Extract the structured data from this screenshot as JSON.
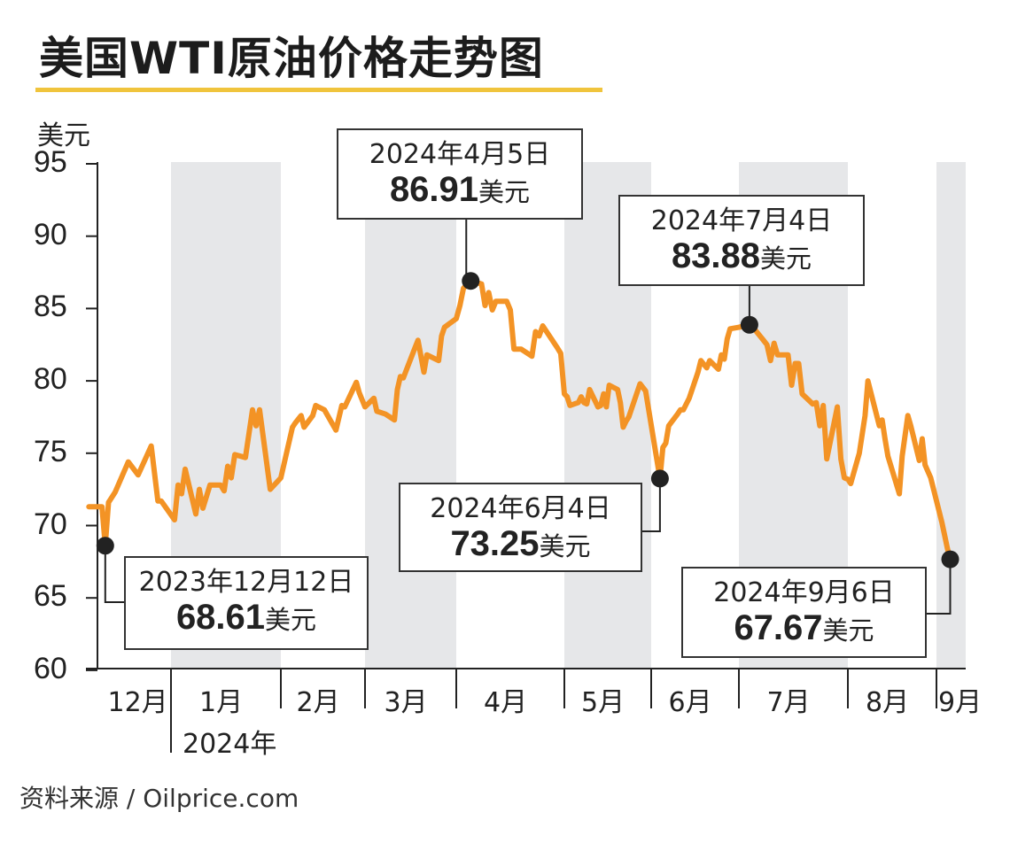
{
  "chart_data": {
    "type": "line",
    "title": "美国WTI原油价格走势图",
    "ylabel": "美元",
    "ylim": [
      60,
      95
    ],
    "yticks": [
      "95",
      "90",
      "85",
      "80",
      "75",
      "70",
      "65",
      "60"
    ],
    "x_tick_labels": [
      "12月",
      "1月",
      "2月",
      "3月",
      "4月",
      "5月",
      "6月",
      "7月",
      "8月",
      "9月"
    ],
    "x_year_label": "2024年",
    "alternating_month_shading": true,
    "line_color": "#f39325",
    "band_color": "#e6e7e9",
    "title_rule_color": "#f0c43c",
    "series": [
      {
        "points": [
          [
            "2023-12-07",
            71.3
          ],
          [
            "2023-12-11",
            71.3
          ],
          [
            "2023-12-12",
            68.61
          ],
          [
            "2023-12-13",
            71.6
          ],
          [
            "2023-12-15",
            72.3
          ],
          [
            "2023-12-19",
            74.4
          ],
          [
            "2023-12-22",
            73.5
          ],
          [
            "2023-12-26",
            75.5
          ],
          [
            "2023-12-28",
            71.7
          ],
          [
            "2023-12-29",
            71.7
          ],
          [
            "2024-01-02",
            70.4
          ],
          [
            "2024-01-03",
            72.8
          ],
          [
            "2024-01-04",
            72.2
          ],
          [
            "2024-01-05",
            73.9
          ],
          [
            "2024-01-08",
            70.8
          ],
          [
            "2024-01-09",
            72.5
          ],
          [
            "2024-01-10",
            71.2
          ],
          [
            "2024-01-12",
            72.8
          ],
          [
            "2024-01-15",
            72.8
          ],
          [
            "2024-01-16",
            72.4
          ],
          [
            "2024-01-17",
            74.1
          ],
          [
            "2024-01-18",
            73.3
          ],
          [
            "2024-01-19",
            74.9
          ],
          [
            "2024-01-22",
            74.7
          ],
          [
            "2024-01-24",
            78.0
          ],
          [
            "2024-01-25",
            76.9
          ],
          [
            "2024-01-26",
            78.0
          ],
          [
            "2024-01-29",
            72.5
          ],
          [
            "2024-02-01",
            73.3
          ],
          [
            "2024-02-05",
            76.8
          ],
          [
            "2024-02-06",
            77.1
          ],
          [
            "2024-02-08",
            77.6
          ],
          [
            "2024-02-09",
            76.8
          ],
          [
            "2024-02-12",
            77.6
          ],
          [
            "2024-02-13",
            78.3
          ],
          [
            "2024-02-16",
            78.0
          ],
          [
            "2024-02-20",
            76.6
          ],
          [
            "2024-02-22",
            78.3
          ],
          [
            "2024-02-23",
            78.2
          ],
          [
            "2024-02-27",
            79.9
          ],
          [
            "2024-02-28",
            79.2
          ],
          [
            "2024-03-01",
            78.2
          ],
          [
            "2024-03-04",
            78.8
          ],
          [
            "2024-03-05",
            77.9
          ],
          [
            "2024-03-08",
            77.7
          ],
          [
            "2024-03-11",
            77.3
          ],
          [
            "2024-03-12",
            79.4
          ],
          [
            "2024-03-13",
            80.3
          ],
          [
            "2024-03-14",
            80.2
          ],
          [
            "2024-03-18",
            82.3
          ],
          [
            "2024-03-19",
            82.8
          ],
          [
            "2024-03-21",
            80.6
          ],
          [
            "2024-03-22",
            81.8
          ],
          [
            "2024-03-25",
            81.5
          ],
          [
            "2024-03-26",
            81.4
          ],
          [
            "2024-03-27",
            83.1
          ],
          [
            "2024-03-28",
            83.7
          ],
          [
            "2024-04-01",
            84.3
          ],
          [
            "2024-04-02",
            85.2
          ],
          [
            "2024-04-03",
            86.4
          ],
          [
            "2024-04-05",
            86.91
          ],
          [
            "2024-04-08",
            86.7
          ],
          [
            "2024-04-09",
            85.2
          ],
          [
            "2024-04-10",
            86.1
          ],
          [
            "2024-04-11",
            84.9
          ],
          [
            "2024-04-12",
            85.5
          ],
          [
            "2024-04-15",
            85.5
          ],
          [
            "2024-04-16",
            84.9
          ],
          [
            "2024-04-17",
            82.2
          ],
          [
            "2024-04-19",
            82.2
          ],
          [
            "2024-04-22",
            81.7
          ],
          [
            "2024-04-23",
            83.4
          ],
          [
            "2024-04-24",
            83.1
          ],
          [
            "2024-04-25",
            83.8
          ],
          [
            "2024-04-29",
            82.3
          ],
          [
            "2024-04-30",
            81.9
          ],
          [
            "2024-05-01",
            79.1
          ],
          [
            "2024-05-02",
            78.9
          ],
          [
            "2024-05-03",
            78.3
          ],
          [
            "2024-05-06",
            78.5
          ],
          [
            "2024-05-07",
            78.9
          ],
          [
            "2024-05-08",
            78.5
          ],
          [
            "2024-05-09",
            78.4
          ],
          [
            "2024-05-10",
            79.4
          ],
          [
            "2024-05-13",
            78.2
          ],
          [
            "2024-05-14",
            78.3
          ],
          [
            "2024-05-15",
            79.1
          ],
          [
            "2024-05-16",
            78.2
          ],
          [
            "2024-05-17",
            79.7
          ],
          [
            "2024-05-20",
            79.4
          ],
          [
            "2024-05-21",
            78.5
          ],
          [
            "2024-05-22",
            76.8
          ],
          [
            "2024-05-23",
            77.2
          ],
          [
            "2024-05-24",
            77.5
          ],
          [
            "2024-05-28",
            79.8
          ],
          [
            "2024-05-30",
            79.3
          ],
          [
            "2024-06-04",
            73.25
          ],
          [
            "2024-06-05",
            75.4
          ],
          [
            "2024-06-06",
            75.7
          ],
          [
            "2024-06-07",
            76.9
          ],
          [
            "2024-06-10",
            77.7
          ],
          [
            "2024-06-11",
            78.0
          ],
          [
            "2024-06-12",
            78.0
          ],
          [
            "2024-06-14",
            78.8
          ],
          [
            "2024-06-17",
            80.6
          ],
          [
            "2024-06-18",
            81.4
          ],
          [
            "2024-06-20",
            80.9
          ],
          [
            "2024-06-21",
            81.4
          ],
          [
            "2024-06-24",
            80.8
          ],
          [
            "2024-06-25",
            81.8
          ],
          [
            "2024-06-26",
            81.5
          ],
          [
            "2024-06-27",
            82.9
          ],
          [
            "2024-06-28",
            83.6
          ],
          [
            "2024-07-01",
            83.7
          ],
          [
            "2024-07-04",
            83.88
          ],
          [
            "2024-07-05",
            83.7
          ],
          [
            "2024-07-08",
            82.8
          ],
          [
            "2024-07-09",
            82.5
          ],
          [
            "2024-07-10",
            81.4
          ],
          [
            "2024-07-11",
            82.6
          ],
          [
            "2024-07-12",
            81.8
          ],
          [
            "2024-07-15",
            81.8
          ],
          [
            "2024-07-16",
            79.7
          ],
          [
            "2024-07-17",
            81.2
          ],
          [
            "2024-07-18",
            81.2
          ],
          [
            "2024-07-19",
            79.1
          ],
          [
            "2024-07-22",
            78.4
          ],
          [
            "2024-07-23",
            78.5
          ],
          [
            "2024-07-24",
            76.9
          ],
          [
            "2024-07-25",
            78.3
          ],
          [
            "2024-07-26",
            74.6
          ],
          [
            "2024-07-29",
            78.2
          ],
          [
            "2024-07-30",
            74.6
          ],
          [
            "2024-07-31",
            73.3
          ],
          [
            "2024-08-01",
            73.2
          ],
          [
            "2024-08-02",
            72.9
          ],
          [
            "2024-08-05",
            75.0
          ],
          [
            "2024-08-07",
            77.6
          ],
          [
            "2024-08-08",
            80.0
          ],
          [
            "2024-08-12",
            76.9
          ],
          [
            "2024-08-13",
            77.3
          ],
          [
            "2024-08-14",
            76.0
          ],
          [
            "2024-08-15",
            74.8
          ],
          [
            "2024-08-19",
            72.2
          ],
          [
            "2024-08-20",
            74.8
          ],
          [
            "2024-08-22",
            77.6
          ],
          [
            "2024-08-23",
            76.9
          ],
          [
            "2024-08-26",
            74.5
          ],
          [
            "2024-08-27",
            76.0
          ],
          [
            "2024-08-28",
            74.2
          ],
          [
            "2024-08-30",
            73.3
          ],
          [
            "2024-09-03",
            70.2
          ],
          [
            "2024-09-04",
            69.3
          ],
          [
            "2024-09-05",
            68.4
          ],
          [
            "2024-09-06",
            67.67
          ]
        ]
      }
    ],
    "annotations": [
      {
        "date": "2023-12-12",
        "value": 68.61,
        "date_label": "2023年12月12日",
        "value_label": "68.61",
        "unit": "美元"
      },
      {
        "date": "2024-04-05",
        "value": 86.91,
        "date_label": "2024年4月5日",
        "value_label": "86.91",
        "unit": "美元"
      },
      {
        "date": "2024-06-04",
        "value": 73.25,
        "date_label": "2024年6月4日",
        "value_label": "73.25",
        "unit": "美元"
      },
      {
        "date": "2024-07-04",
        "value": 83.88,
        "date_label": "2024年7月4日",
        "value_label": "83.88",
        "unit": "美元"
      },
      {
        "date": "2024-09-06",
        "value": 67.67,
        "date_label": "2024年9月6日",
        "value_label": "67.67",
        "unit": "美元"
      }
    ],
    "source": "资料来源 / Oilprice.com"
  }
}
